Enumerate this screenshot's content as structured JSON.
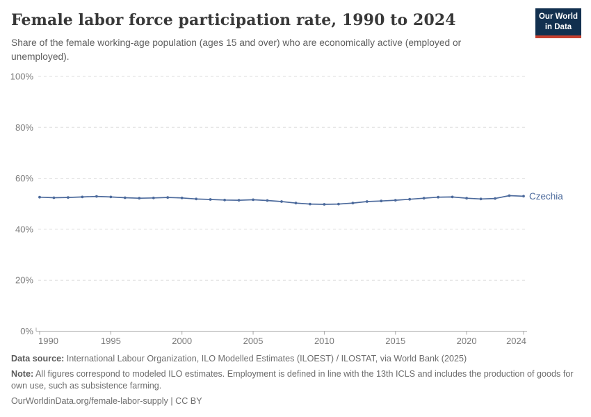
{
  "header": {
    "title": "Female labor force participation rate, 1990 to 2024",
    "subtitle": "Share of the female working-age population (ages 15 and over) who are economically active (employed or unemployed).",
    "logo": {
      "line1": "Our World",
      "line2": "in Data",
      "bg_color": "#12304f",
      "accent_color": "#c7402f"
    }
  },
  "chart_data": {
    "type": "line",
    "title": "Female labor force participation rate, 1990 to 2024",
    "xlabel": "",
    "ylabel": "",
    "ylim": [
      0,
      100
    ],
    "yticks": [
      0,
      20,
      40,
      60,
      80,
      100
    ],
    "ytick_labels": [
      "0%",
      "20%",
      "40%",
      "60%",
      "80%",
      "100%"
    ],
    "xticks": [
      1990,
      1995,
      2000,
      2005,
      2010,
      2015,
      2020,
      2024
    ],
    "grid": "horizontal-dashed",
    "legend": "end-of-line-label",
    "series": [
      {
        "name": "Czechia",
        "color": "#4c6a9c",
        "x": [
          1990,
          1991,
          1992,
          1993,
          1994,
          1995,
          1996,
          1997,
          1998,
          1999,
          2000,
          2001,
          2002,
          2003,
          2004,
          2005,
          2006,
          2007,
          2008,
          2009,
          2010,
          2011,
          2012,
          2013,
          2014,
          2015,
          2016,
          2017,
          2018,
          2019,
          2020,
          2021,
          2022,
          2023,
          2024
        ],
        "values": [
          52.6,
          52.4,
          52.5,
          52.7,
          52.9,
          52.7,
          52.4,
          52.2,
          52.3,
          52.5,
          52.3,
          51.9,
          51.7,
          51.5,
          51.4,
          51.6,
          51.3,
          50.9,
          50.3,
          49.9,
          49.8,
          49.9,
          50.3,
          50.9,
          51.1,
          51.4,
          51.8,
          52.2,
          52.6,
          52.7,
          52.2,
          51.9,
          52.1,
          53.2,
          53.0
        ]
      }
    ]
  },
  "axis_style": {
    "label_color": "#7a7a7a",
    "grid_color": "#dedede",
    "axis_color": "#a8a8a8"
  },
  "footer": {
    "datasource_label": "Data source:",
    "datasource_text": " International Labour Organization, ILO Modelled Estimates (ILOEST) / ILOSTAT, via World Bank (2025)",
    "note_label": "Note:",
    "note_text": " All figures correspond to modeled ILO estimates. Employment is defined in line with the 13th ICLS and includes the production of goods for own use, such as subsistence farming.",
    "cc_line": "OurWorldinData.org/female-labor-supply | CC BY"
  }
}
